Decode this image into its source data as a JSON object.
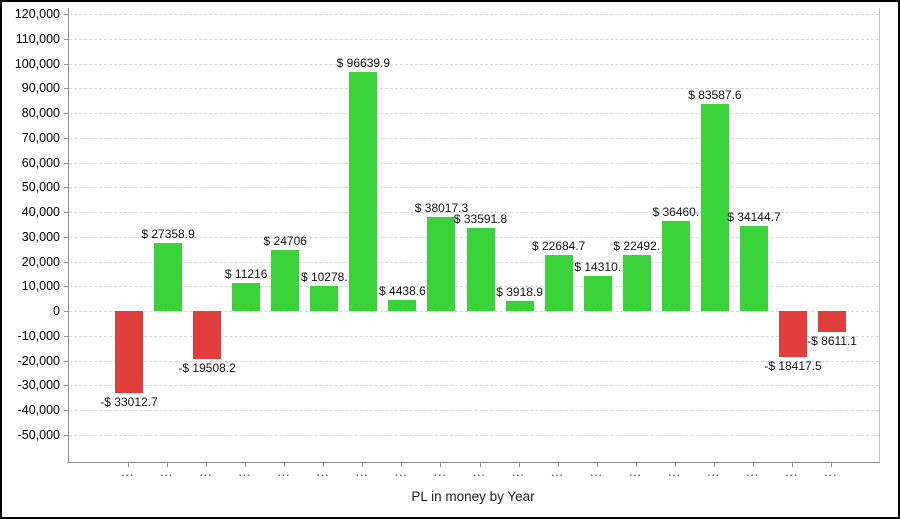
{
  "window": {
    "background": "#ffffff",
    "border_color": "#000000"
  },
  "chart_data": {
    "type": "bar",
    "title": "PL in money by Year",
    "xlabel": "",
    "ylabel": "",
    "ylim": [
      -50000,
      120000
    ],
    "grid": "horizontal-dashed",
    "legend": "none",
    "x_tick_label_text": "...",
    "categories": [
      "...",
      "...",
      "...",
      "...",
      "...",
      "...",
      "...",
      "...",
      "...",
      "...",
      "...",
      "...",
      "...",
      "...",
      "...",
      "...",
      "...",
      "...",
      "..."
    ],
    "values": [
      -33012.7,
      27358.9,
      -19508.2,
      11216,
      24706,
      10278,
      96639.9,
      4438.6,
      38017.3,
      33591.8,
      3918.9,
      22684.7,
      14310,
      22492,
      36460,
      83587.6,
      34144.7,
      -18417.5,
      -8611.1
    ],
    "bar_labels": [
      "-$ 33012.7",
      "$ 27358.9",
      "-$ 19508.2",
      "$ 11216",
      "$ 24706",
      "$ 10278.",
      "$ 96639.9",
      "$ 4438.6",
      "$ 38017.3",
      "$ 33591.8",
      "$ 3918.9",
      "$ 22684.7",
      "$ 14310.",
      "$ 22492.",
      "$ 36460.",
      "$ 83587.6",
      "$ 34144.7",
      "-$ 18417.5",
      "-$ 8611.1"
    ],
    "y_ticks": [
      {
        "value": 120000,
        "label": "120,000"
      },
      {
        "value": 110000,
        "label": "110,000"
      },
      {
        "value": 100000,
        "label": "100,000"
      },
      {
        "value": 90000,
        "label": "90,000"
      },
      {
        "value": 80000,
        "label": "80,000"
      },
      {
        "value": 70000,
        "label": "70,000"
      },
      {
        "value": 60000,
        "label": "60,000"
      },
      {
        "value": 50000,
        "label": "50,000"
      },
      {
        "value": 40000,
        "label": "40,000"
      },
      {
        "value": 30000,
        "label": "30,000"
      },
      {
        "value": 20000,
        "label": "20,000"
      },
      {
        "value": 10000,
        "label": "10,000"
      },
      {
        "value": 0,
        "label": "0"
      },
      {
        "value": -10000,
        "label": "-10,000"
      },
      {
        "value": -20000,
        "label": "-20,000"
      },
      {
        "value": -30000,
        "label": "-30,000"
      },
      {
        "value": -40000,
        "label": "-40,000"
      },
      {
        "value": -50000,
        "label": "-50,000"
      }
    ],
    "colors": {
      "positive_bar": "#3ad43a",
      "negative_bar": "#e33e3e",
      "gridline": "#d8d8d8",
      "axis_line": "#909090",
      "plot_right_border": "#c4c4c4",
      "bar_label_text": "#141414",
      "y_axis_text": "#000000",
      "x_dots_text": "#707070",
      "title_text": "#222222"
    }
  }
}
